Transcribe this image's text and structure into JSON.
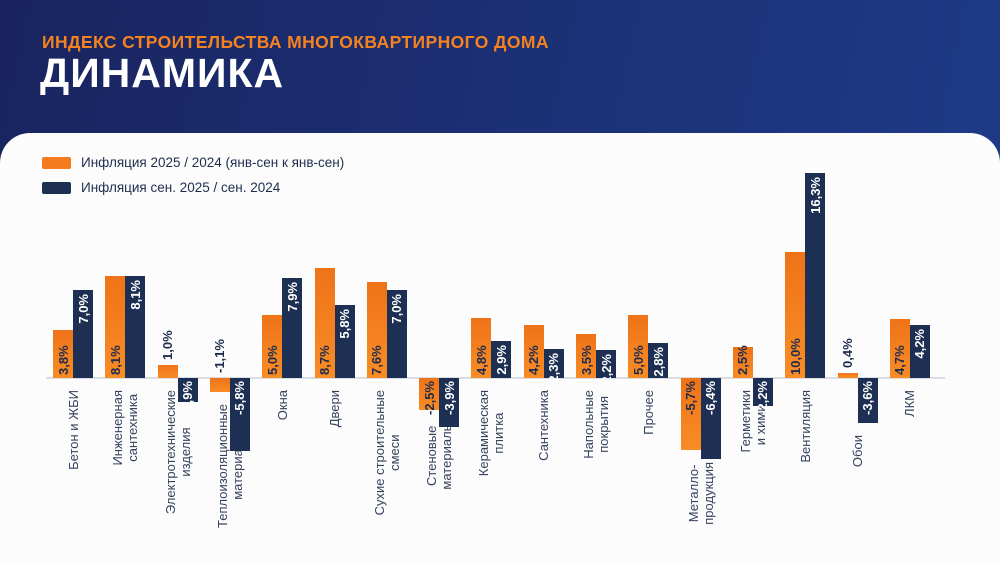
{
  "header": {
    "kicker": "ИНДЕКС СТРОИТЕЛЬСТВА МНОГОКВАРТИРНОГО ДОМА",
    "title": "ДИНАМИКА"
  },
  "chart_data": {
    "type": "bar",
    "categories": [
      "Бетон и ЖБИ",
      "Инженерная\nсантехника",
      "Электротехнические\nизделия",
      "Теплоизоляционные\nматериалы",
      "Окна",
      "Двери",
      "Сухие строительные\nсмеси",
      "Стеновые\nматериалы",
      "Керамическая\nплитка",
      "Сантехника",
      "Напольные\nпокрытия",
      "Прочее",
      "Металло-\nпродукция",
      "Герметики\nи химия",
      "Вентиляция",
      "Обои",
      "ЛКМ"
    ],
    "series": [
      {
        "name": "Инфляция 2025 / 2024 (янв-сен к янв-сен)",
        "color": "#f57c1e",
        "values": [
          3.8,
          8.1,
          1.0,
          -1.1,
          5.0,
          8.7,
          7.6,
          -2.5,
          4.8,
          4.2,
          3.5,
          5.0,
          -5.7,
          2.5,
          10.0,
          0.4,
          4.7
        ]
      },
      {
        "name": "Инфляция сен. 2025 / сен. 2024",
        "color": "#1d3053",
        "values": [
          7.0,
          8.1,
          -1.9,
          -5.8,
          7.9,
          5.8,
          7.0,
          -3.9,
          2.9,
          2.3,
          2.2,
          2.8,
          -6.4,
          -2.2,
          16.3,
          -3.6,
          4.2
        ]
      }
    ],
    "unit": "%",
    "decimal_separator": ",",
    "grid": false,
    "legend_position": "top-left",
    "axis_line_color": "#dadde2",
    "label_color_on_orange": "#1e2c4e",
    "label_color_on_navy": "#ffffff",
    "category_label_color": "#35425e"
  }
}
